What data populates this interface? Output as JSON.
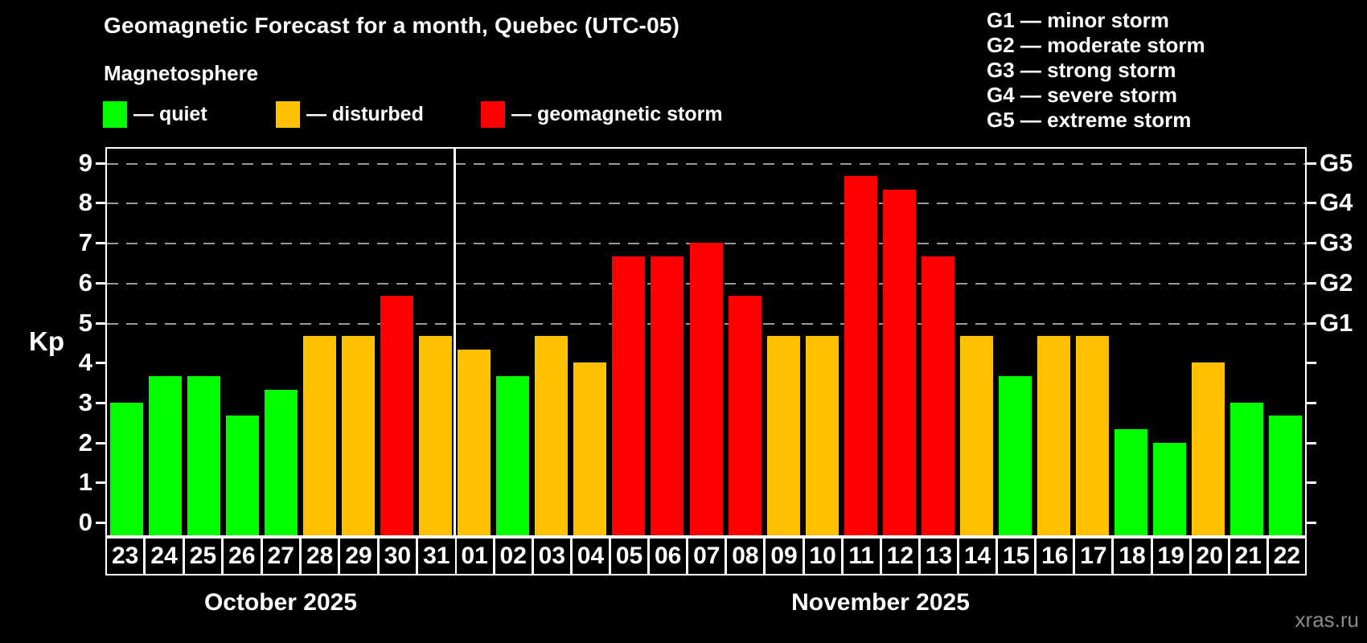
{
  "title": "Geomagnetic Forecast for a month, Quebec (UTC-05)",
  "subtitle": "Magnetosphere",
  "legend": {
    "items": [
      {
        "key": "quiet",
        "label": "— quiet"
      },
      {
        "key": "disturbed",
        "label": "— disturbed"
      },
      {
        "key": "storm",
        "label": "— geomagnetic storm"
      }
    ]
  },
  "g_legend": [
    "G1 — minor storm",
    "G2 — moderate storm",
    "G3 — strong storm",
    "G4 — severe storm",
    "G5 — extreme storm"
  ],
  "watermark": "xras.ru",
  "chart_data": {
    "type": "bar",
    "title": "Geomagnetic Forecast for a month, Quebec (UTC-05)",
    "ylabel": "Kp",
    "ylim": [
      0,
      9.4
    ],
    "y_ticks": [
      0,
      1,
      2,
      3,
      4,
      5,
      6,
      7,
      8,
      9
    ],
    "grid_levels": [
      5,
      6,
      7,
      8,
      9
    ],
    "right_axis_labels": {
      "5": "G1",
      "6": "G2",
      "7": "G3",
      "8": "G4",
      "9": "G5"
    },
    "legend_position": "top-left",
    "grid": "dashed-horizontal-at-storm-levels",
    "status_colors": {
      "quiet": "#00ff00",
      "disturbed": "#ffc000",
      "storm": "#ff0000"
    },
    "axis_color": "#ffffff",
    "gridline_color": "#999999",
    "background_color": "#000000",
    "sections": [
      {
        "label": "October 2025",
        "days": [
          {
            "date": "23",
            "kp": 3.0,
            "status": "quiet"
          },
          {
            "date": "24",
            "kp": 3.67,
            "status": "quiet"
          },
          {
            "date": "25",
            "kp": 3.67,
            "status": "quiet"
          },
          {
            "date": "26",
            "kp": 2.67,
            "status": "quiet"
          },
          {
            "date": "27",
            "kp": 3.33,
            "status": "quiet"
          },
          {
            "date": "28",
            "kp": 4.67,
            "status": "disturbed"
          },
          {
            "date": "29",
            "kp": 4.67,
            "status": "disturbed"
          },
          {
            "date": "30",
            "kp": 5.67,
            "status": "storm"
          },
          {
            "date": "31",
            "kp": 4.67,
            "status": "disturbed"
          }
        ]
      },
      {
        "label": "November 2025",
        "days": [
          {
            "date": "01",
            "kp": 4.33,
            "status": "disturbed"
          },
          {
            "date": "02",
            "kp": 3.67,
            "status": "quiet"
          },
          {
            "date": "03",
            "kp": 4.67,
            "status": "disturbed"
          },
          {
            "date": "04",
            "kp": 4.0,
            "status": "disturbed"
          },
          {
            "date": "05",
            "kp": 6.67,
            "status": "storm"
          },
          {
            "date": "06",
            "kp": 6.67,
            "status": "storm"
          },
          {
            "date": "07",
            "kp": 7.0,
            "status": "storm"
          },
          {
            "date": "08",
            "kp": 5.67,
            "status": "storm"
          },
          {
            "date": "09",
            "kp": 4.67,
            "status": "disturbed"
          },
          {
            "date": "10",
            "kp": 4.67,
            "status": "disturbed"
          },
          {
            "date": "11",
            "kp": 8.67,
            "status": "storm"
          },
          {
            "date": "12",
            "kp": 8.33,
            "status": "storm"
          },
          {
            "date": "13",
            "kp": 6.67,
            "status": "storm"
          },
          {
            "date": "14",
            "kp": 4.67,
            "status": "disturbed"
          },
          {
            "date": "15",
            "kp": 3.67,
            "status": "quiet"
          },
          {
            "date": "16",
            "kp": 4.67,
            "status": "disturbed"
          },
          {
            "date": "17",
            "kp": 4.67,
            "status": "disturbed"
          },
          {
            "date": "18",
            "kp": 2.33,
            "status": "quiet"
          },
          {
            "date": "19",
            "kp": 2.0,
            "status": "quiet"
          },
          {
            "date": "20",
            "kp": 4.0,
            "status": "disturbed"
          },
          {
            "date": "21",
            "kp": 3.0,
            "status": "quiet"
          },
          {
            "date": "22",
            "kp": 2.67,
            "status": "quiet"
          }
        ]
      }
    ]
  }
}
